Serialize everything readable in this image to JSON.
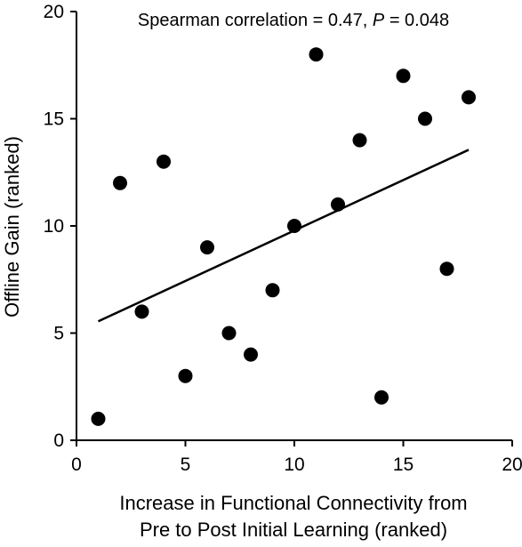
{
  "chart_data": {
    "type": "scatter",
    "title": "",
    "annotation": {
      "prefix": "Spearman correlation = 0.47, ",
      "p_symbol": "P",
      "suffix": " = 0.048"
    },
    "xlabel_lines": [
      "Increase in Functional Connectivity from",
      "Pre to Post Initial Learning (ranked)"
    ],
    "ylabel": "Offline Gain (ranked)",
    "xlim": [
      0,
      20
    ],
    "ylim": [
      0,
      20
    ],
    "xticks": [
      0,
      5,
      10,
      15,
      20
    ],
    "yticks": [
      0,
      5,
      10,
      15,
      20
    ],
    "grid": false,
    "series": [
      {
        "points": [
          {
            "x": 1,
            "y": 1
          },
          {
            "x": 2,
            "y": 12
          },
          {
            "x": 3,
            "y": 6
          },
          {
            "x": 4,
            "y": 13
          },
          {
            "x": 5,
            "y": 3
          },
          {
            "x": 6,
            "y": 9
          },
          {
            "x": 7,
            "y": 5
          },
          {
            "x": 8,
            "y": 4
          },
          {
            "x": 9,
            "y": 7
          },
          {
            "x": 10,
            "y": 10
          },
          {
            "x": 11,
            "y": 18
          },
          {
            "x": 12,
            "y": 11
          },
          {
            "x": 13,
            "y": 14
          },
          {
            "x": 14,
            "y": 2
          },
          {
            "x": 15,
            "y": 17
          },
          {
            "x": 16,
            "y": 15
          },
          {
            "x": 17,
            "y": 8
          },
          {
            "x": 18,
            "y": 16
          }
        ]
      }
    ],
    "fit_line": {
      "x": [
        1,
        18
      ],
      "y": [
        5.55,
        13.55
      ]
    }
  }
}
